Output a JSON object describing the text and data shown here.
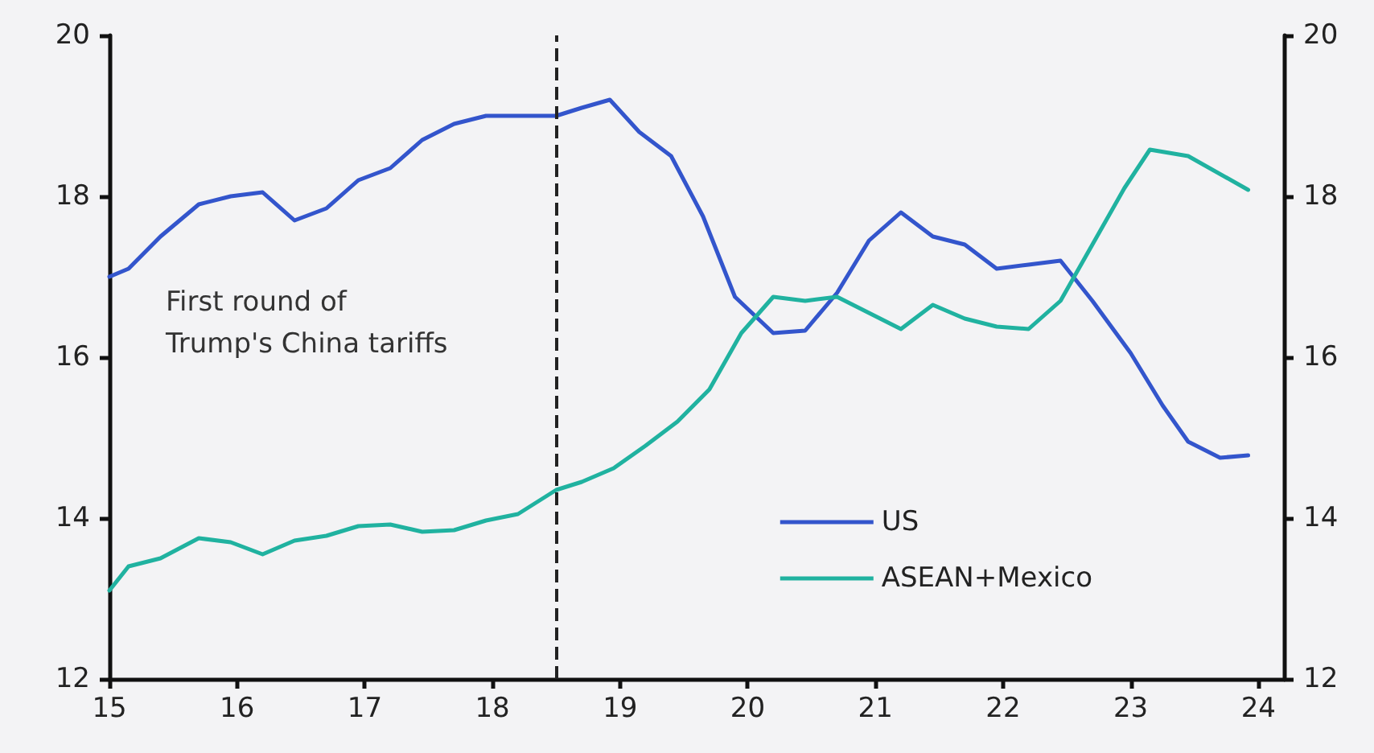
{
  "chart_data": {
    "type": "line",
    "xlim": [
      15,
      24.2
    ],
    "xticks": [
      15,
      16,
      17,
      18,
      19,
      20,
      21,
      22,
      23,
      24
    ],
    "ylim": [
      12,
      20
    ],
    "yticks": [
      12,
      14,
      16,
      18,
      20
    ],
    "y2lim": [
      12,
      20
    ],
    "y2ticks": [
      12,
      14,
      16,
      18,
      20
    ],
    "series": [
      {
        "name": "US",
        "color": "#3355cc",
        "x": [
          15.0,
          15.15,
          15.4,
          15.7,
          15.95,
          16.2,
          16.45,
          16.7,
          16.95,
          17.2,
          17.45,
          17.7,
          17.95,
          18.2,
          18.5,
          18.7,
          18.92,
          19.15,
          19.4,
          19.65,
          19.9,
          20.2,
          20.45,
          20.7,
          20.95,
          21.2,
          21.45,
          21.7,
          21.95,
          22.2,
          22.45,
          22.7,
          23.0,
          23.25,
          23.45,
          23.7,
          23.92
        ],
        "values": [
          17.0,
          17.1,
          17.5,
          17.9,
          18.0,
          18.05,
          17.7,
          17.85,
          18.2,
          18.35,
          18.7,
          18.9,
          19.0,
          19.0,
          19.0,
          19.1,
          19.2,
          18.8,
          18.5,
          17.75,
          16.75,
          16.3,
          16.33,
          16.8,
          17.45,
          17.8,
          17.5,
          17.4,
          17.1,
          17.15,
          17.2,
          16.7,
          16.05,
          15.4,
          14.95,
          14.75,
          14.78
        ]
      },
      {
        "name": "ASEAN+Mexico",
        "color": "#20b2a0",
        "x": [
          15.0,
          15.15,
          15.4,
          15.7,
          15.95,
          16.2,
          16.45,
          16.7,
          16.95,
          17.2,
          17.45,
          17.7,
          17.95,
          18.2,
          18.5,
          18.7,
          18.95,
          19.2,
          19.45,
          19.7,
          19.95,
          20.2,
          20.45,
          20.7,
          20.95,
          21.2,
          21.45,
          21.7,
          21.95,
          22.2,
          22.45,
          22.7,
          22.95,
          23.15,
          23.45,
          23.92
        ],
        "values": [
          13.1,
          13.4,
          13.5,
          13.75,
          13.7,
          13.55,
          13.72,
          13.78,
          13.9,
          13.92,
          13.83,
          13.85,
          13.97,
          14.05,
          14.35,
          14.45,
          14.62,
          14.9,
          15.2,
          15.6,
          16.3,
          16.75,
          16.7,
          16.75,
          16.55,
          16.35,
          16.65,
          16.48,
          16.38,
          16.35,
          16.7,
          17.4,
          18.1,
          18.58,
          18.5,
          18.08
        ]
      }
    ],
    "ref_lines": [
      {
        "axis": "x",
        "value": 18.5,
        "label": null,
        "color": "#222222",
        "line_style": "dashed"
      }
    ],
    "annotations": [
      "First round of\nTrump's China tariffs"
    ],
    "legend": "bottom right",
    "grid": false,
    "marker": "none",
    "line_style": "solid"
  }
}
